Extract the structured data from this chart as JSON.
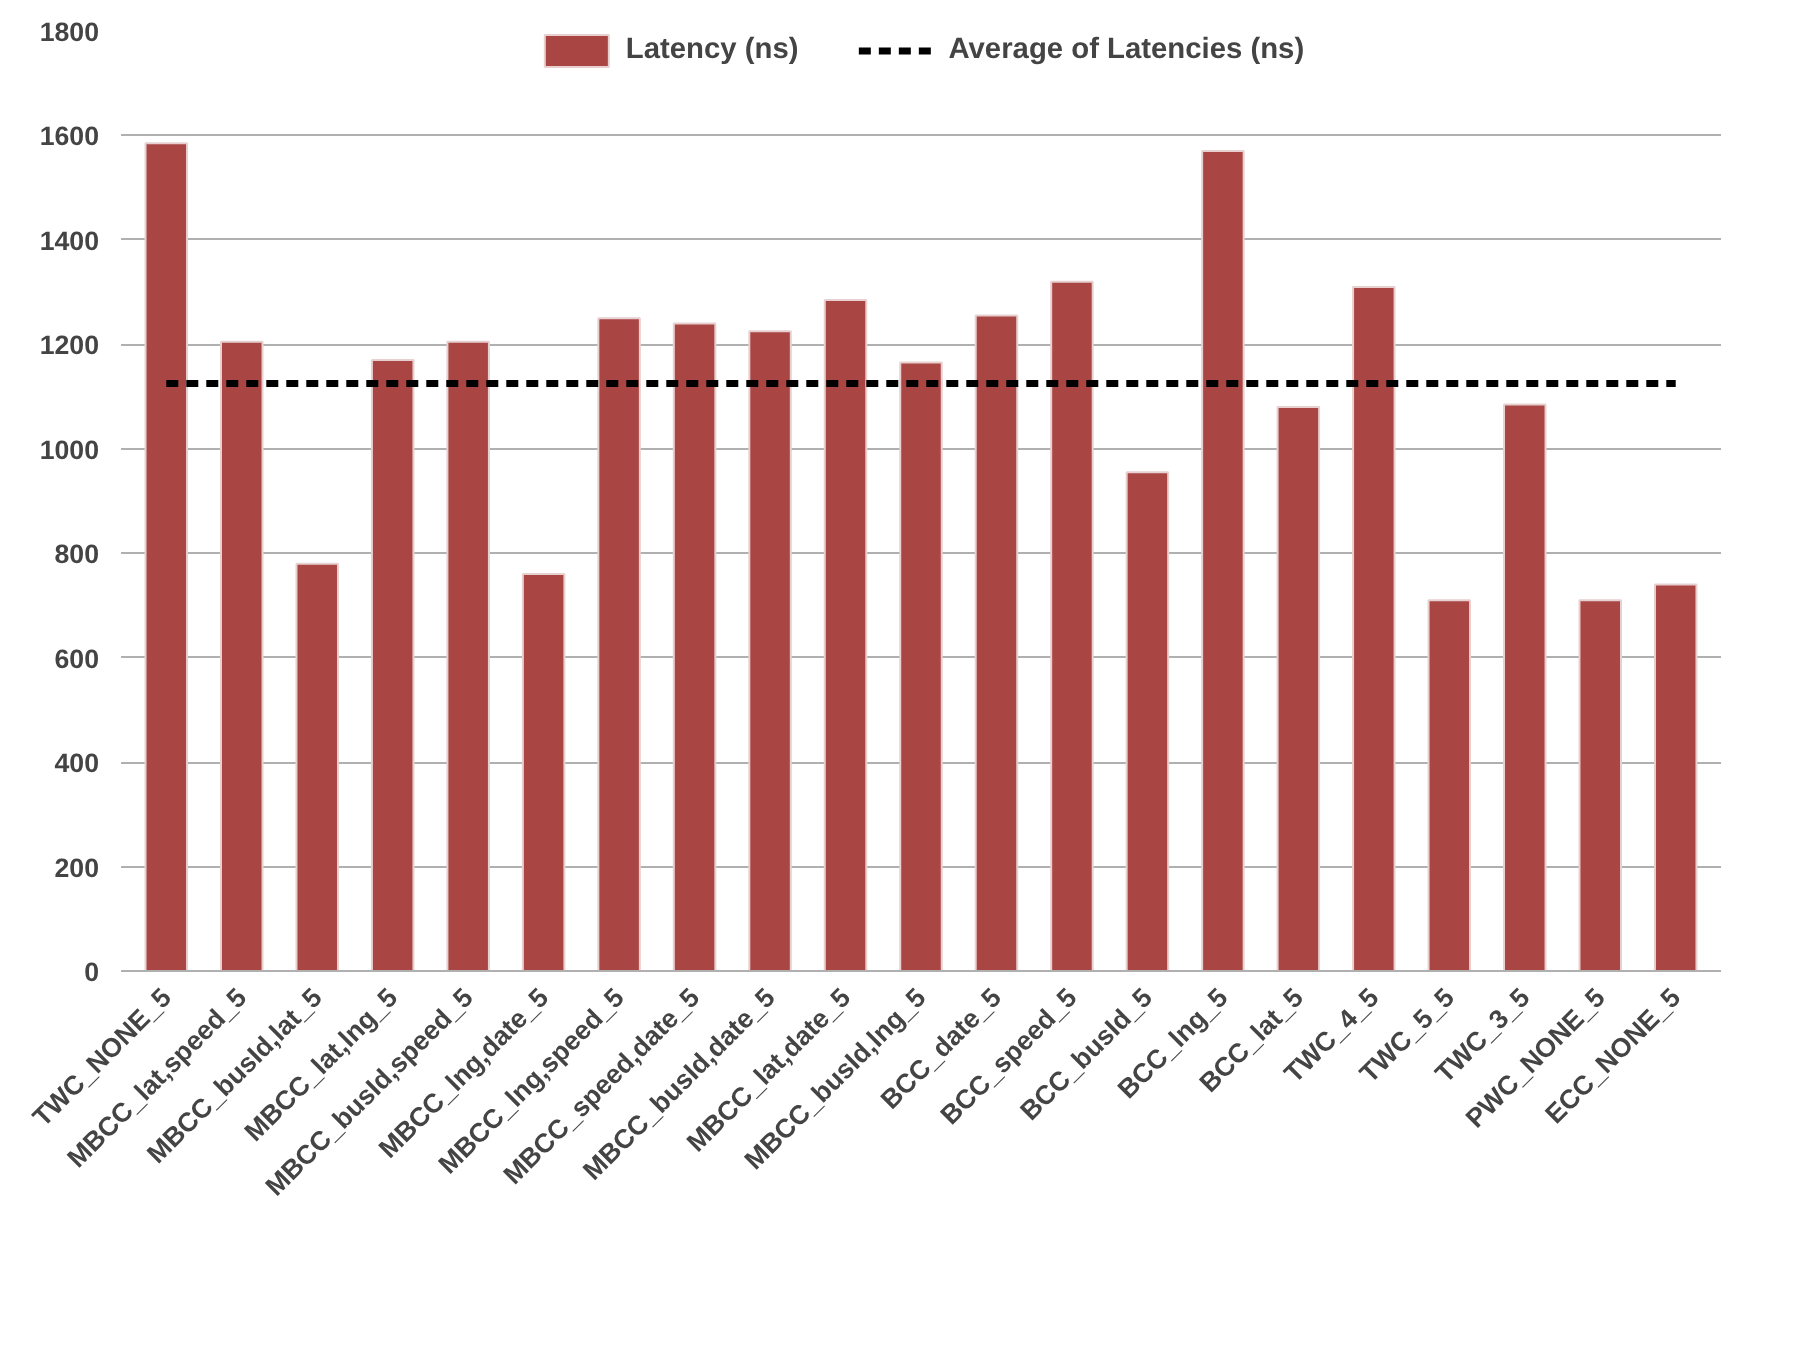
{
  "chart_data": {
    "type": "bar",
    "categories": [
      "TWC_NONE_5",
      "MBCC_lat,speed_5",
      "MBCC_busId,lat_5",
      "MBCC_lat,lng_5",
      "MBCC_busId,speed_5",
      "MBCC_lng,date_5",
      "MBCC_lng,speed_5",
      "MBCC_speed,date_5",
      "MBCC_busId,date_5",
      "MBCC_lat,date_5",
      "MBCC_busId,lng_5",
      "BCC_date_5",
      "BCC_speed_5",
      "BCC_busId_5",
      "BCC_lng_5",
      "BCC_lat_5",
      "TWC_4_5",
      "TWC_5_5",
      "TWC_3_5",
      "PWC_NONE_5",
      "ECC_NONE_5"
    ],
    "series": [
      {
        "name": "Latency (ns)",
        "color": "#a94644",
        "values": [
          1585,
          1205,
          780,
          1170,
          1205,
          760,
          1250,
          1240,
          1225,
          1285,
          1165,
          1255,
          1320,
          955,
          1570,
          1080,
          1310,
          710,
          1085,
          710,
          740
        ]
      },
      {
        "name": "Average of Latencies (ns)",
        "type": "line",
        "color": "#000000",
        "line_style": "dashed",
        "values": [
          1125,
          1125,
          1125,
          1125,
          1125,
          1125,
          1125,
          1125,
          1125,
          1125,
          1125,
          1125,
          1125,
          1125,
          1125,
          1125,
          1125,
          1125,
          1125,
          1125,
          1125
        ]
      }
    ],
    "ylim": [
      0,
      1800
    ],
    "yticks": [
      0,
      200,
      400,
      600,
      800,
      1000,
      1200,
      1400,
      1600,
      1800
    ],
    "grid": "y",
    "legend": "top",
    "marker": "none"
  }
}
